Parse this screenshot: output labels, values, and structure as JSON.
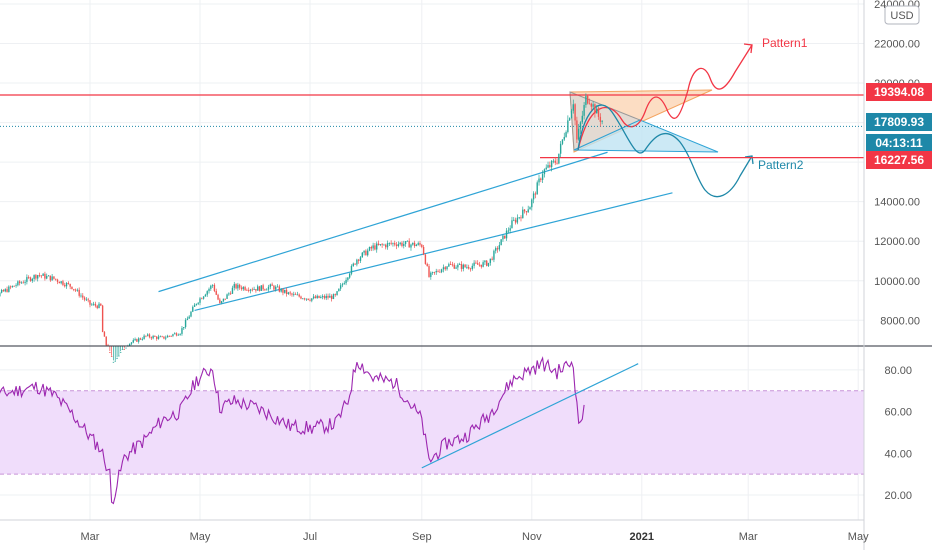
{
  "chart_data": [
    {
      "type": "candlestick",
      "pane": "price",
      "currency_label": "USD",
      "ylim": [
        6700,
        24200
      ],
      "y_ticks": [
        "24000.00",
        "22000.00",
        "20000.00",
        "18000.00",
        "16000.00",
        "14000.00",
        "12000.00",
        "10000.00",
        "8000.00"
      ],
      "y_tick_values": [
        24000,
        22000,
        20000,
        18000,
        16000,
        14000,
        12000,
        10000,
        8000
      ],
      "price_labels": [
        {
          "text": "19394.08",
          "value": 19394.08,
          "color": "#f23645"
        },
        {
          "text": "17809.93",
          "value": 17809.93,
          "color": "#1e88a8"
        },
        {
          "text": "04:13:11",
          "value": 17200,
          "color": "#1e88a8"
        },
        {
          "text": "16227.56",
          "value": 16227.56,
          "color": "#f23645"
        }
      ],
      "horizontal_lines": [
        {
          "value": 19394.08,
          "color": "#f23645",
          "style": "solid"
        },
        {
          "value": 16227.56,
          "color": "#f23645",
          "style": "solid"
        },
        {
          "value": 17809.93,
          "color": "#1e88a8",
          "style": "dotted"
        }
      ],
      "annotations": [
        {
          "text": "Pattern1",
          "color": "#f23645"
        },
        {
          "text": "Pattern2",
          "color": "#1e88a8"
        }
      ],
      "trend_channel": {
        "upper": [
          [
            "2020-04-08",
            9450
          ],
          [
            "2020-12-13",
            16500
          ]
        ],
        "lower": [
          [
            "2020-04-28",
            8500
          ],
          [
            "2021-01-18",
            14450
          ]
        ]
      },
      "series_close_points": [
        [
          "2020-01-01",
          8600
        ],
        [
          "2020-01-10",
          9300
        ],
        [
          "2020-01-20",
          9800
        ],
        [
          "2020-02-01",
          10300
        ],
        [
          "2020-02-10",
          10100
        ],
        [
          "2020-02-20",
          9700
        ],
        [
          "2020-03-01",
          8800
        ],
        [
          "2020-03-07",
          8700
        ],
        [
          "2020-03-08",
          7400
        ],
        [
          "2020-03-13",
          5800
        ],
        [
          "2020-03-22",
          6800
        ],
        [
          "2020-04-01",
          7200
        ],
        [
          "2020-04-10",
          7100
        ],
        [
          "2020-04-20",
          7400
        ],
        [
          "2020-04-29",
          8900
        ],
        [
          "2020-05-08",
          9800
        ],
        [
          "2020-05-12",
          8800
        ],
        [
          "2020-05-20",
          9700
        ],
        [
          "2020-06-01",
          9600
        ],
        [
          "2020-06-10",
          9700
        ],
        [
          "2020-06-20",
          9300
        ],
        [
          "2020-07-01",
          9100
        ],
        [
          "2020-07-15",
          9200
        ],
        [
          "2020-07-27",
          11100
        ],
        [
          "2020-08-05",
          11700
        ],
        [
          "2020-08-17",
          11900
        ],
        [
          "2020-09-01",
          11800
        ],
        [
          "2020-09-05",
          10200
        ],
        [
          "2020-09-15",
          10800
        ],
        [
          "2020-09-25",
          10700
        ],
        [
          "2020-10-08",
          10900
        ],
        [
          "2020-10-21",
          12900
        ],
        [
          "2020-10-31",
          13800
        ],
        [
          "2020-11-07",
          15500
        ],
        [
          "2020-11-15",
          16100
        ],
        [
          "2020-11-24",
          19100
        ],
        [
          "2020-11-26",
          17100
        ],
        [
          "2020-12-01",
          19200
        ],
        [
          "2020-12-03",
          19200
        ],
        [
          "2020-12-08",
          18300
        ],
        [
          "2020-12-10",
          18100
        ]
      ]
    },
    {
      "type": "line",
      "pane": "rsi",
      "ylim": [
        8,
        91
      ],
      "y_ticks": [
        "80.00",
        "60.00",
        "40.00",
        "20.00"
      ],
      "y_tick_values": [
        80,
        60,
        40,
        20
      ],
      "band": [
        30,
        70
      ],
      "series_points": [
        [
          "2020-01-01",
          64
        ],
        [
          "2020-01-10",
          68
        ],
        [
          "2020-01-20",
          70
        ],
        [
          "2020-02-01",
          72
        ],
        [
          "2020-02-10",
          68
        ],
        [
          "2020-02-20",
          59
        ],
        [
          "2020-03-01",
          48
        ],
        [
          "2020-03-07",
          42
        ],
        [
          "2020-03-12",
          30
        ],
        [
          "2020-03-13",
          16
        ],
        [
          "2020-03-20",
          38
        ],
        [
          "2020-04-01",
          47
        ],
        [
          "2020-04-10",
          56
        ],
        [
          "2020-04-20",
          60
        ],
        [
          "2020-04-29",
          75
        ],
        [
          "2020-05-08",
          81
        ],
        [
          "2020-05-12",
          62
        ],
        [
          "2020-05-20",
          65
        ],
        [
          "2020-06-01",
          62
        ],
        [
          "2020-06-10",
          58
        ],
        [
          "2020-06-20",
          53
        ],
        [
          "2020-07-01",
          52
        ],
        [
          "2020-07-15",
          54
        ],
        [
          "2020-07-22",
          65
        ],
        [
          "2020-07-27",
          85
        ],
        [
          "2020-08-05",
          76
        ],
        [
          "2020-08-17",
          74
        ],
        [
          "2020-09-01",
          56
        ],
        [
          "2020-09-05",
          36
        ],
        [
          "2020-09-15",
          45
        ],
        [
          "2020-09-25",
          48
        ],
        [
          "2020-10-08",
          58
        ],
        [
          "2020-10-21",
          75
        ],
        [
          "2020-10-31",
          80
        ],
        [
          "2020-11-07",
          83
        ],
        [
          "2020-11-15",
          79
        ],
        [
          "2020-11-24",
          84
        ],
        [
          "2020-11-26",
          62
        ],
        [
          "2020-11-27",
          55
        ],
        [
          "2020-11-29",
          58
        ],
        [
          "2020-11-30",
          60
        ]
      ],
      "trend_line": [
        [
          "2020-09-01",
          33
        ],
        [
          "2020-12-30",
          83
        ]
      ]
    }
  ],
  "x_axis": {
    "labels": [
      {
        "text": "Mar",
        "date": "2020-03-01"
      },
      {
        "text": "May",
        "date": "2020-05-01"
      },
      {
        "text": "Jul",
        "date": "2020-07-01"
      },
      {
        "text": "Sep",
        "date": "2020-09-01"
      },
      {
        "text": "Nov",
        "date": "2020-11-01"
      },
      {
        "text": "2021",
        "date": "2021-01-01"
      },
      {
        "text": "Mar",
        "date": "2021-03-01"
      },
      {
        "text": "May",
        "date": "2021-05-01"
      }
    ]
  },
  "colors": {
    "up": "#26a69a",
    "down": "#ef5350",
    "rsi_line": "#9c27b0",
    "rsi_band": "#f0ddfb",
    "channel": "#2fa4d6",
    "resistance": "#f23645",
    "current": "#1e88a8"
  }
}
